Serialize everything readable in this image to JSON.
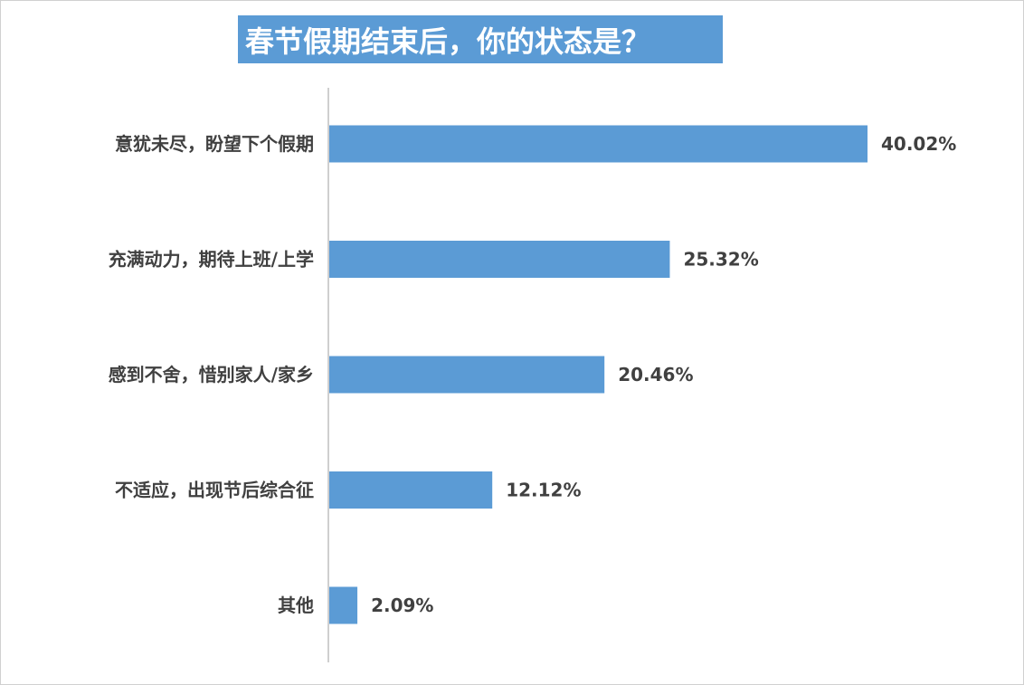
{
  "chart_data": {
    "type": "bar",
    "orientation": "horizontal",
    "title": "春节假期结束后，你的状态是？",
    "categories": [
      "意犹未尽，盼望下个假期",
      "充满动力，期待上班/上学",
      "感到不舍，惜别家人/家乡",
      "不适应，出现节后综合征",
      "其他"
    ],
    "values": [
      40.02,
      25.32,
      20.46,
      12.12,
      2.09
    ],
    "value_labels": [
      "40.02%",
      "25.32%",
      "20.46%",
      "12.12%",
      "2.09%"
    ],
    "xlabel": "",
    "ylabel": "",
    "xlim": [
      0,
      40.02
    ],
    "grid": false,
    "bar_color": "#5b9bd5",
    "title_background": "#5b9bd5",
    "text_color": "#404040"
  }
}
